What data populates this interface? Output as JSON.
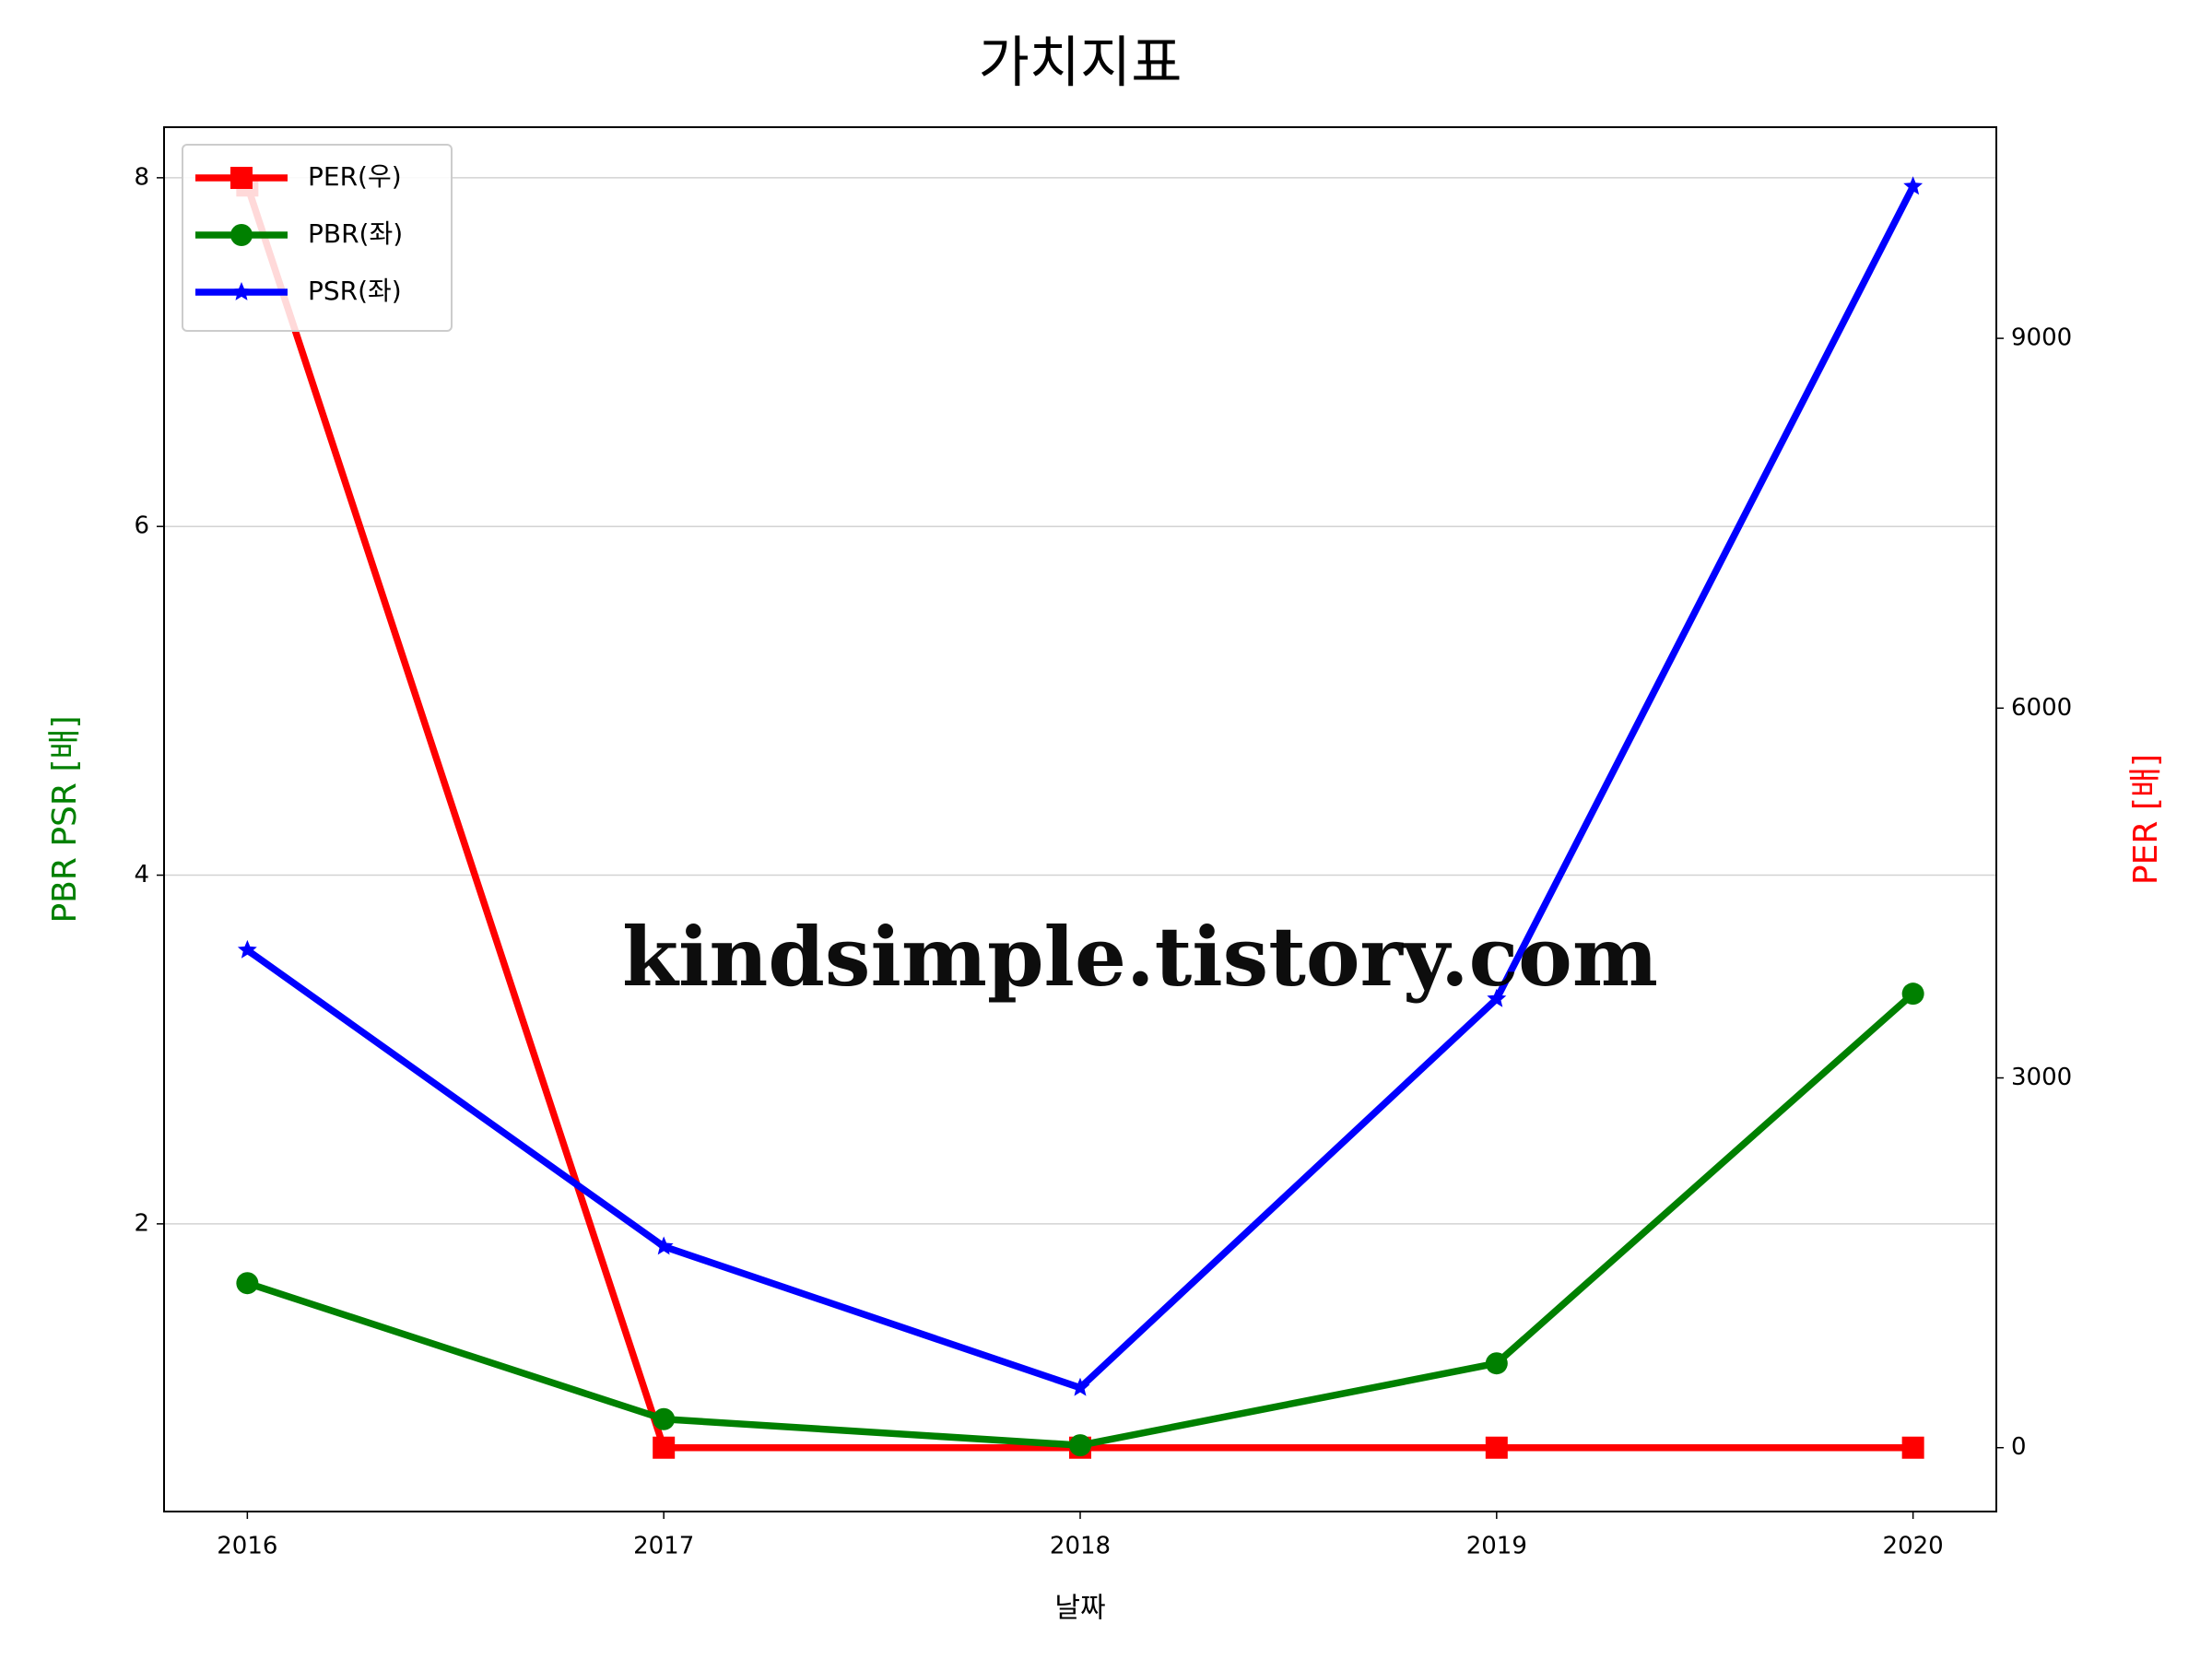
{
  "chart_data": {
    "type": "line",
    "title": "가치지표",
    "xlabel": "날짜",
    "ylabel": "PBR PSR [배]",
    "y2label": "PER [배]",
    "ylabel_color": "green",
    "y2label_color": "red",
    "x": [
      2016,
      2017,
      2018,
      2019,
      2020
    ],
    "xlim": [
      2015.8,
      2020.2
    ],
    "xticks": [
      2016,
      2017,
      2018,
      2019,
      2020
    ],
    "ylim": [
      0.35,
      8.29
    ],
    "yticks": [
      2,
      4,
      6,
      8
    ],
    "y2lim": [
      -518,
      10713
    ],
    "y2ticks": [
      0,
      3000,
      6000,
      9000
    ],
    "grid": true,
    "legend": "upper left",
    "annotation": "kindsimple.tistory.com",
    "series": [
      {
        "name": "PER(우)",
        "color": "red",
        "marker": "square",
        "axis": "y2",
        "values": [
          10240,
          0,
          0,
          0,
          0
        ]
      },
      {
        "name": "PBR(좌)",
        "color": "green",
        "marker": "circle",
        "values": [
          1.66,
          0.88,
          0.73,
          1.2,
          3.32
        ]
      },
      {
        "name": "PSR(좌)",
        "color": "blue",
        "marker": "star",
        "values": [
          3.57,
          1.87,
          1.06,
          3.29,
          7.95
        ]
      }
    ]
  }
}
